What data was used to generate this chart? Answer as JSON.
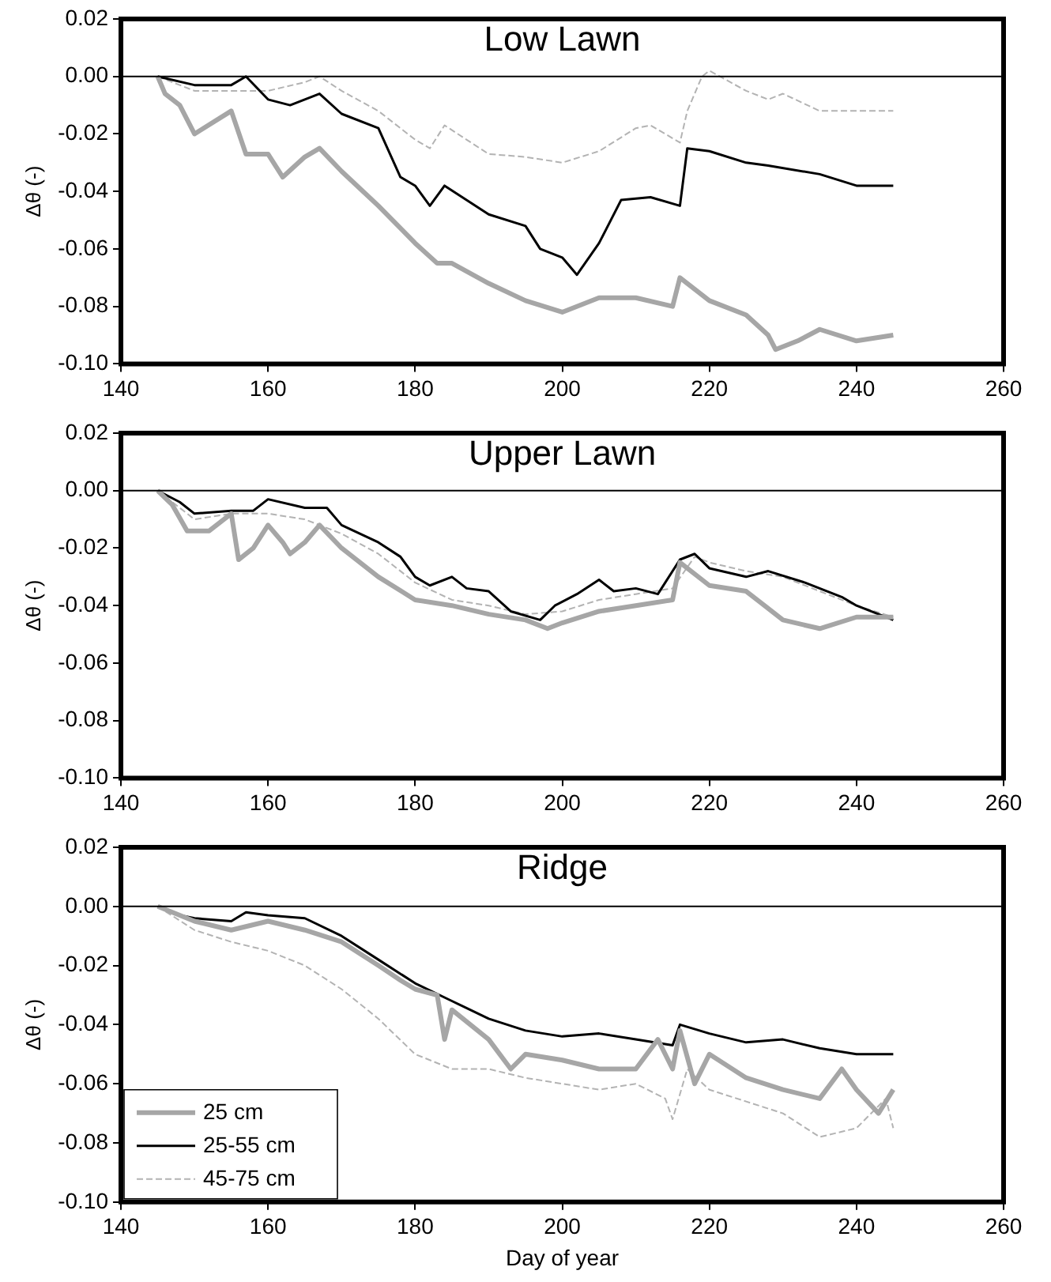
{
  "chart_data": [
    {
      "type": "line",
      "title": "Low Lawn",
      "ylabel": "Δθ (-)",
      "xlim": [
        140,
        260
      ],
      "xticks": [
        140,
        160,
        180,
        200,
        220,
        240,
        260
      ],
      "ylim": [
        -0.1,
        0.02
      ],
      "yticks": [
        {
          "value": -0.1,
          "label": "-0.10"
        },
        {
          "value": -0.08,
          "label": "-0.08"
        },
        {
          "value": -0.06,
          "label": "-0.06"
        },
        {
          "value": -0.04,
          "label": "-0.04"
        },
        {
          "value": -0.02,
          "label": "-0.02"
        },
        {
          "value": 0,
          "label": "0.00"
        },
        {
          "value": 0.02,
          "label": "0.02"
        }
      ],
      "grid": false,
      "legend": false,
      "marker": "none",
      "ref_lines": [
        {
          "axis": "y",
          "value": 0,
          "color": "#000000"
        }
      ],
      "series": [
        {
          "color": "#a6a6a6",
          "x": [
            145,
            146,
            148,
            150,
            155,
            157,
            160,
            162,
            165,
            167,
            170,
            175,
            180,
            183,
            185,
            190,
            195,
            200,
            205,
            210,
            215,
            216,
            220,
            225,
            228,
            229,
            232,
            235,
            240,
            245
          ],
          "values": [
            0,
            -0.006,
            -0.01,
            -0.02,
            -0.012,
            -0.027,
            -0.027,
            -0.035,
            -0.028,
            -0.025,
            -0.033,
            -0.045,
            -0.058,
            -0.065,
            -0.065,
            -0.072,
            -0.078,
            -0.082,
            -0.077,
            -0.077,
            -0.08,
            -0.07,
            -0.078,
            -0.083,
            -0.09,
            -0.095,
            -0.092,
            -0.088,
            -0.092,
            -0.09
          ]
        },
        {
          "color": "#000000",
          "x": [
            145,
            150,
            155,
            157,
            160,
            163,
            165,
            167,
            170,
            175,
            178,
            180,
            182,
            184,
            190,
            195,
            197,
            200,
            202,
            205,
            208,
            212,
            216,
            217,
            220,
            225,
            228,
            235,
            240,
            245
          ],
          "values": [
            0,
            -0.003,
            -0.003,
            0,
            -0.008,
            -0.01,
            -0.008,
            -0.006,
            -0.013,
            -0.018,
            -0.035,
            -0.038,
            -0.045,
            -0.038,
            -0.048,
            -0.052,
            -0.06,
            -0.063,
            -0.069,
            -0.058,
            -0.043,
            -0.042,
            -0.045,
            -0.025,
            -0.026,
            -0.03,
            -0.031,
            -0.034,
            -0.038,
            -0.038
          ]
        },
        {
          "color": "#b3b3b3",
          "line_style": "dashed",
          "x": [
            145,
            150,
            155,
            160,
            165,
            167,
            170,
            175,
            180,
            182,
            184,
            190,
            195,
            200,
            205,
            210,
            212,
            216,
            217,
            219,
            220,
            225,
            228,
            230,
            235,
            240,
            245
          ],
          "values": [
            0,
            -0.005,
            -0.005,
            -0.005,
            -0.002,
            0,
            -0.005,
            -0.012,
            -0.022,
            -0.025,
            -0.017,
            -0.027,
            -0.028,
            -0.03,
            -0.026,
            -0.018,
            -0.017,
            -0.023,
            -0.012,
            0,
            0.002,
            -0.005,
            -0.008,
            -0.006,
            -0.012,
            -0.012,
            -0.012
          ]
        }
      ]
    },
    {
      "type": "line",
      "title": "Upper Lawn",
      "ylabel": "Δθ (-)",
      "xlim": [
        140,
        260
      ],
      "xticks": [
        140,
        160,
        180,
        200,
        220,
        240,
        260
      ],
      "ylim": [
        -0.1,
        0.02
      ],
      "yticks": [
        {
          "value": -0.1,
          "label": "-0.10"
        },
        {
          "value": -0.08,
          "label": "-0.08"
        },
        {
          "value": -0.06,
          "label": "-0.06"
        },
        {
          "value": -0.04,
          "label": "-0.04"
        },
        {
          "value": -0.02,
          "label": "-0.02"
        },
        {
          "value": 0,
          "label": "0.00"
        },
        {
          "value": 0.02,
          "label": "0.02"
        }
      ],
      "grid": false,
      "legend": false,
      "marker": "none",
      "ref_lines": [
        {
          "axis": "y",
          "value": 0,
          "color": "#000000"
        }
      ],
      "series": [
        {
          "color": "#a6a6a6",
          "x": [
            145,
            147,
            149,
            152,
            155,
            156,
            158,
            160,
            162,
            163,
            165,
            167,
            170,
            175,
            180,
            185,
            190,
            195,
            198,
            200,
            205,
            210,
            215,
            216,
            220,
            225,
            230,
            235,
            240,
            245
          ],
          "values": [
            0,
            -0.005,
            -0.014,
            -0.014,
            -0.008,
            -0.024,
            -0.02,
            -0.012,
            -0.018,
            -0.022,
            -0.018,
            -0.012,
            -0.02,
            -0.03,
            -0.038,
            -0.04,
            -0.043,
            -0.045,
            -0.048,
            -0.046,
            -0.042,
            -0.04,
            -0.038,
            -0.025,
            -0.033,
            -0.035,
            -0.045,
            -0.048,
            -0.044,
            -0.044
          ]
        },
        {
          "color": "#000000",
          "x": [
            145,
            148,
            150,
            155,
            158,
            160,
            165,
            168,
            170,
            175,
            178,
            180,
            182,
            185,
            187,
            190,
            193,
            197,
            199,
            202,
            205,
            207,
            210,
            213,
            216,
            218,
            220,
            225,
            228,
            233,
            238,
            240,
            245
          ],
          "values": [
            0,
            -0.004,
            -0.008,
            -0.007,
            -0.007,
            -0.003,
            -0.006,
            -0.006,
            -0.012,
            -0.018,
            -0.023,
            -0.03,
            -0.033,
            -0.03,
            -0.034,
            -0.035,
            -0.042,
            -0.045,
            -0.04,
            -0.036,
            -0.031,
            -0.035,
            -0.034,
            -0.036,
            -0.024,
            -0.022,
            -0.027,
            -0.03,
            -0.028,
            -0.032,
            -0.037,
            -0.04,
            -0.045
          ]
        },
        {
          "color": "#b3b3b3",
          "line_style": "dashed",
          "x": [
            145,
            150,
            155,
            160,
            165,
            170,
            175,
            180,
            185,
            190,
            195,
            200,
            205,
            210,
            215,
            218,
            220,
            225,
            230,
            235,
            240,
            245
          ],
          "values": [
            0,
            -0.01,
            -0.008,
            -0.008,
            -0.01,
            -0.015,
            -0.022,
            -0.032,
            -0.038,
            -0.04,
            -0.043,
            -0.042,
            -0.038,
            -0.036,
            -0.034,
            -0.023,
            -0.025,
            -0.028,
            -0.03,
            -0.035,
            -0.04,
            -0.044
          ]
        }
      ]
    },
    {
      "type": "line",
      "title": "Ridge",
      "xlabel": "Day of year",
      "ylabel": "Δθ (-)",
      "xlim": [
        140,
        260
      ],
      "xticks": [
        140,
        160,
        180,
        200,
        220,
        240,
        260
      ],
      "ylim": [
        -0.1,
        0.02
      ],
      "yticks": [
        {
          "value": -0.1,
          "label": "-0.10"
        },
        {
          "value": -0.08,
          "label": "-0.08"
        },
        {
          "value": -0.06,
          "label": "-0.06"
        },
        {
          "value": -0.04,
          "label": "-0.04"
        },
        {
          "value": -0.02,
          "label": "-0.02"
        },
        {
          "value": 0,
          "label": "0.00"
        },
        {
          "value": 0.02,
          "label": "0.02"
        }
      ],
      "grid": false,
      "legend": "bottom left",
      "marker": "none",
      "ref_lines": [
        {
          "axis": "y",
          "value": 0,
          "color": "#000000"
        }
      ],
      "series": [
        {
          "name": "25 cm",
          "color": "#a6a6a6",
          "x": [
            145,
            150,
            155,
            160,
            165,
            170,
            175,
            178,
            180,
            183,
            184,
            185,
            190,
            193,
            195,
            200,
            205,
            210,
            213,
            215,
            216,
            218,
            220,
            225,
            230,
            235,
            238,
            240,
            243,
            245
          ],
          "values": [
            0,
            -0.005,
            -0.008,
            -0.005,
            -0.008,
            -0.012,
            -0.02,
            -0.025,
            -0.028,
            -0.03,
            -0.045,
            -0.035,
            -0.045,
            -0.055,
            -0.05,
            -0.052,
            -0.055,
            -0.055,
            -0.045,
            -0.055,
            -0.042,
            -0.06,
            -0.05,
            -0.058,
            -0.062,
            -0.065,
            -0.055,
            -0.062,
            -0.07,
            -0.062
          ]
        },
        {
          "name": "25-55 cm",
          "color": "#000000",
          "x": [
            145,
            148,
            150,
            155,
            157,
            160,
            165,
            170,
            175,
            180,
            185,
            190,
            195,
            200,
            205,
            210,
            215,
            216,
            220,
            225,
            230,
            235,
            240,
            245
          ],
          "values": [
            0,
            -0.003,
            -0.004,
            -0.005,
            -0.002,
            -0.003,
            -0.004,
            -0.01,
            -0.018,
            -0.026,
            -0.032,
            -0.038,
            -0.042,
            -0.044,
            -0.043,
            -0.045,
            -0.047,
            -0.04,
            -0.043,
            -0.046,
            -0.045,
            -0.048,
            -0.05,
            -0.05
          ]
        },
        {
          "name": "45-75 cm",
          "color": "#b3b3b3",
          "line_style": "dashed",
          "x": [
            145,
            150,
            155,
            160,
            165,
            170,
            175,
            180,
            185,
            190,
            195,
            200,
            205,
            210,
            214,
            215,
            217,
            220,
            225,
            230,
            235,
            240,
            244,
            245
          ],
          "values": [
            0,
            -0.008,
            -0.012,
            -0.015,
            -0.02,
            -0.028,
            -0.038,
            -0.05,
            -0.055,
            -0.055,
            -0.058,
            -0.06,
            -0.062,
            -0.06,
            -0.065,
            -0.072,
            -0.055,
            -0.062,
            -0.066,
            -0.07,
            -0.078,
            -0.075,
            -0.065,
            -0.075
          ]
        }
      ]
    }
  ]
}
